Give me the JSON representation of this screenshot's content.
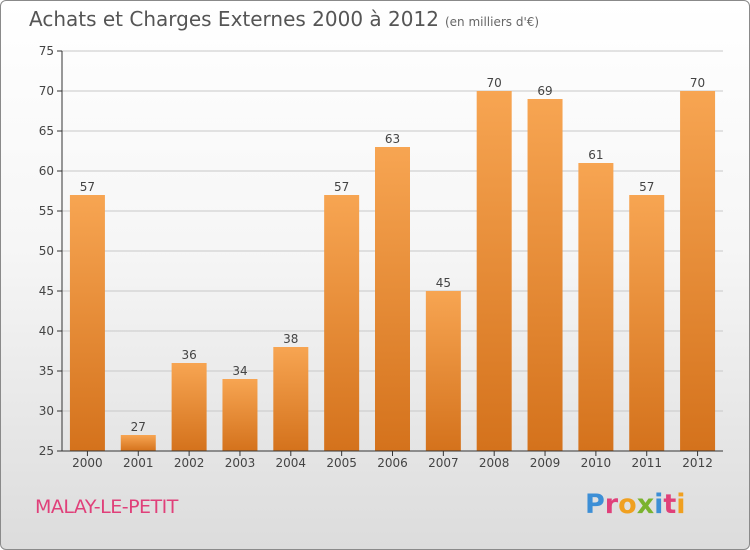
{
  "header": {
    "title": "Achats et Charges Externes 2000 à 2012",
    "subtitle": "(en milliers d'€)"
  },
  "footer": {
    "town": "MALAY-LE-PETIT",
    "brand": "Proxiti",
    "brand_letters": [
      {
        "ch": "P",
        "color": "#3d8fd6"
      },
      {
        "ch": "r",
        "color": "#e0407a"
      },
      {
        "ch": "o",
        "color": "#f0a020"
      },
      {
        "ch": "x",
        "color": "#7ab32e"
      },
      {
        "ch": "i",
        "color": "#3d8fd6"
      },
      {
        "ch": "t",
        "color": "#e0407a"
      },
      {
        "ch": "i",
        "color": "#f0a020"
      }
    ]
  },
  "colors": {
    "bar_top": "#f7a552",
    "bar_bottom": "#d4721c",
    "grid": "#c8c8c8",
    "axis": "#333333"
  },
  "chart_data": {
    "type": "bar",
    "categories": [
      "2000",
      "2001",
      "2002",
      "2003",
      "2004",
      "2005",
      "2006",
      "2007",
      "2008",
      "2009",
      "2010",
      "2011",
      "2012"
    ],
    "values": [
      57,
      27,
      36,
      34,
      38,
      57,
      63,
      45,
      70,
      69,
      61,
      57,
      70
    ],
    "ylim": [
      25,
      75
    ],
    "yticks": [
      25,
      30,
      35,
      40,
      45,
      50,
      55,
      60,
      65,
      70,
      75
    ],
    "grid": true,
    "title": "Achats et Charges Externes 2000 à 2012",
    "xlabel": "",
    "ylabel": ""
  }
}
